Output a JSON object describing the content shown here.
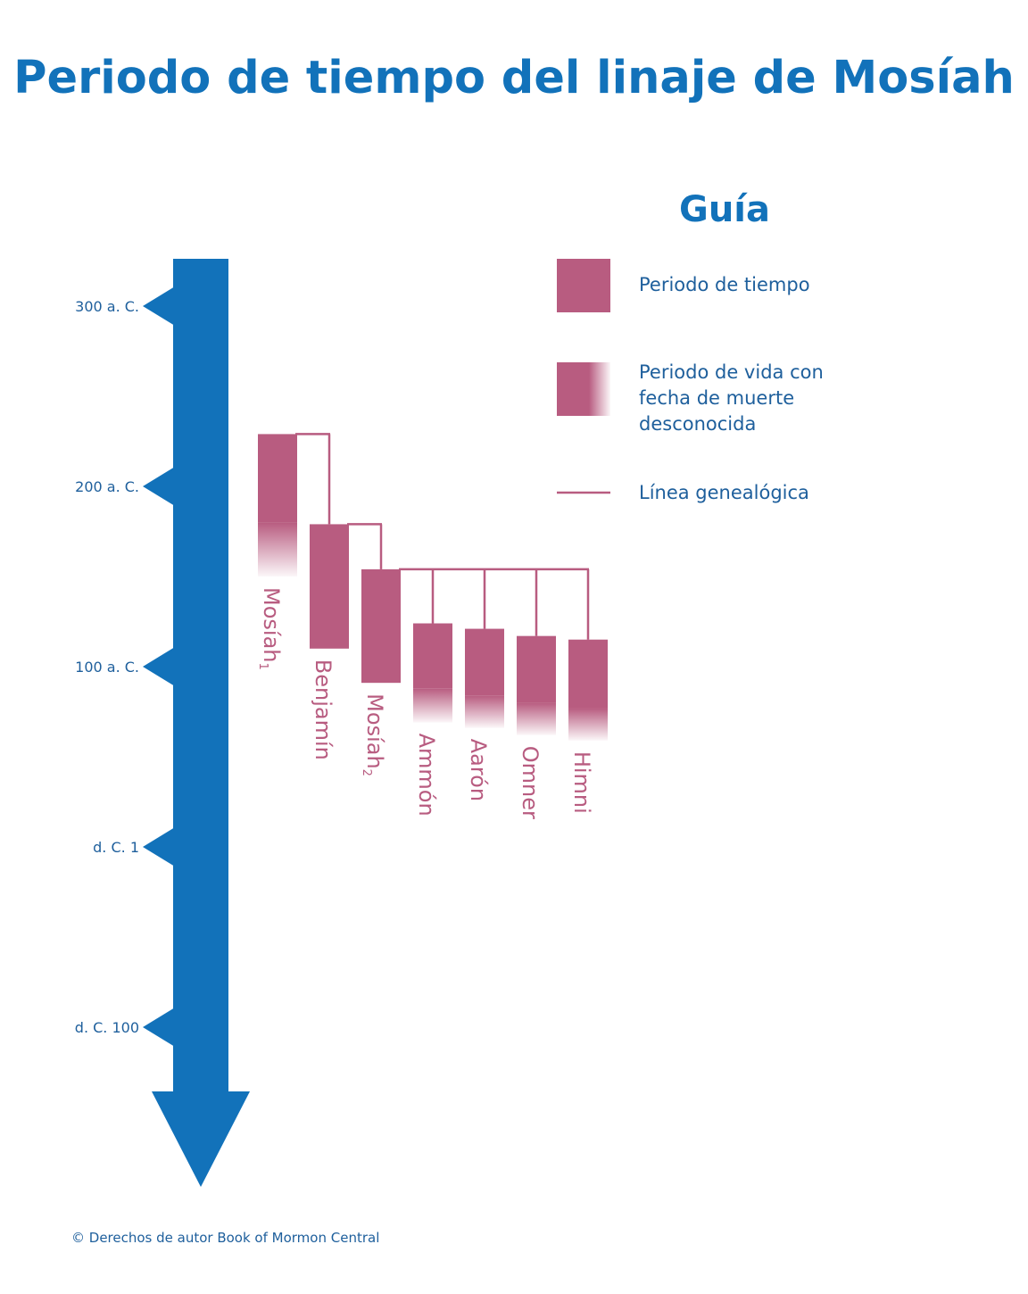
{
  "title": "Periodo de tiempo del linaje de Mosíah",
  "colors": {
    "timeline": "#1272BA",
    "period": "#B85C80",
    "text_blue": "#1E5F9C"
  },
  "legend": {
    "title": "Guía",
    "items": [
      {
        "kind": "period",
        "label": [
          "Periodo de tiempo"
        ]
      },
      {
        "kind": "unknown-death",
        "label": [
          "Periodo de vida con",
          "fecha de muerte",
          "desconocida"
        ]
      },
      {
        "kind": "lineage",
        "label": [
          "Línea genealógica"
        ]
      }
    ]
  },
  "timeline": {
    "ticks": [
      {
        "label": "300 a. C.",
        "year": -300
      },
      {
        "label": "200 a. C.",
        "year": -200
      },
      {
        "label": "100 a. C.",
        "year": -100
      },
      {
        "label": "d. C. 1",
        "year": 0
      },
      {
        "label": "d. C. 100",
        "year": 100
      }
    ]
  },
  "people": [
    {
      "name": "Mosíah",
      "sub": "1",
      "start": -229,
      "end": -150,
      "solid_end": -180,
      "unknown_death": true
    },
    {
      "name": "Benjamín",
      "sub": "",
      "start": -179,
      "end": -110,
      "unknown_death": false
    },
    {
      "name": "Mosíah",
      "sub": "2",
      "start": -154,
      "end": -91,
      "unknown_death": false
    },
    {
      "name": "Ammón",
      "sub": "",
      "start": -124,
      "end": -69,
      "solid_end": -88,
      "unknown_death": true
    },
    {
      "name": "Aarón",
      "sub": "",
      "start": -121,
      "end": -66,
      "solid_end": -84,
      "unknown_death": true
    },
    {
      "name": "Omner",
      "sub": "",
      "start": -117,
      "end": -62,
      "solid_end": -80,
      "unknown_death": true
    },
    {
      "name": "Himni",
      "sub": "",
      "start": -115,
      "end": -59,
      "solid_end": -77,
      "unknown_death": true
    }
  ],
  "lineage": [
    {
      "parent": 0,
      "children": [
        1
      ]
    },
    {
      "parent": 1,
      "children": [
        2
      ]
    },
    {
      "parent": 2,
      "children": [
        3,
        4,
        5,
        6
      ]
    }
  ],
  "copyright": "© Derechos de autor Book of Mormon Central"
}
